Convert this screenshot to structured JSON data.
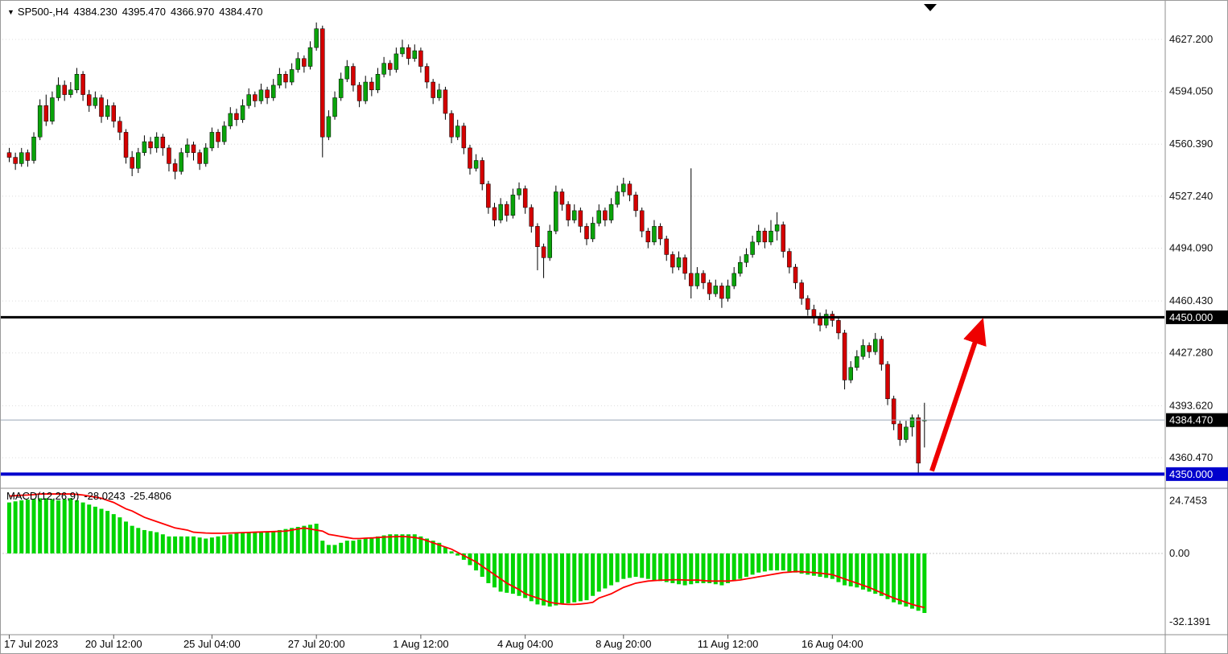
{
  "header": {
    "marker_icon": "▼",
    "symbol_timeframe": "SP500-,H4",
    "open": "4384.230",
    "high": "4395.470",
    "low": "4366.970",
    "close": "4384.470"
  },
  "macd_label": {
    "name": "MACD(12,26,9)",
    "macd_value": "-28.0243",
    "signal_value": "-25.4806"
  },
  "chart_data": {
    "type": "candlestick",
    "symbol": "SP500-",
    "timeframe": "H4",
    "colors": {
      "bull": "#0aa30a",
      "bear": "#d40000",
      "wick": "#000000",
      "hist": "#00d500",
      "signal": "#ff0000",
      "grid": "#dcdcdc",
      "axis_text": "#111111",
      "support": "#0000cd",
      "resistance": "#000000",
      "arrow": "#ee0000"
    },
    "x_labels": [
      {
        "text": "17 Jul 2023",
        "bar": 0
      },
      {
        "text": "20 Jul 12:00",
        "bar": 17
      },
      {
        "text": "25 Jul 04:00",
        "bar": 33
      },
      {
        "text": "27 Jul 20:00",
        "bar": 50
      },
      {
        "text": "1 Aug 12:00",
        "bar": 67
      },
      {
        "text": "4 Aug 04:00",
        "bar": 84
      },
      {
        "text": "8 Aug 20:00",
        "bar": 100
      },
      {
        "text": "11 Aug 12:00",
        "bar": 117
      },
      {
        "text": "16 Aug 04:00",
        "bar": 134
      }
    ],
    "main": {
      "ylim": [
        4343,
        4639
      ],
      "ticks": [
        [
          4627.2,
          "4627.200"
        ],
        [
          4594.05,
          "4594.050"
        ],
        [
          4560.39,
          "4560.390"
        ],
        [
          4527.24,
          "4527.240"
        ],
        [
          4494.09,
          "4494.090"
        ],
        [
          4460.43,
          "4460.430"
        ],
        [
          4427.28,
          "4427.280"
        ],
        [
          4393.62,
          "4393.620"
        ],
        [
          4360.47,
          "4360.470"
        ]
      ],
      "hlines": [
        {
          "name": "resistance-line",
          "price": 4450.0,
          "label": "4450.000",
          "color": "#000000",
          "badge": "#000000",
          "width": 3
        },
        {
          "name": "support-line",
          "price": 4350.0,
          "label": "4350.000",
          "color": "#0000cd",
          "badge": "#0000cd",
          "width": 4
        }
      ],
      "current_price": {
        "value": 4384.47,
        "label": "4384.470",
        "line_color": "#9aa7b8",
        "badge": "#000000"
      },
      "arrow": {
        "from_bar": 150.2,
        "from_price": 4352,
        "to_bar": 158,
        "to_price": 4443,
        "color": "#ee0000"
      },
      "ohlc": [
        [
          4555,
          4558,
          4549,
          4552
        ],
        [
          4552,
          4555,
          4544,
          4548
        ],
        [
          4548,
          4558,
          4546,
          4555
        ],
        [
          4555,
          4557,
          4546,
          4550
        ],
        [
          4550,
          4568,
          4548,
          4565
        ],
        [
          4565,
          4589,
          4563,
          4585
        ],
        [
          4585,
          4592,
          4572,
          4575
        ],
        [
          4575,
          4594,
          4573,
          4590
        ],
        [
          4590,
          4603,
          4588,
          4598
        ],
        [
          4598,
          4601,
          4588,
          4592
        ],
        [
          4592,
          4600,
          4590,
          4595
        ],
        [
          4595,
          4609,
          4593,
          4605
        ],
        [
          4605,
          4607,
          4588,
          4592
        ],
        [
          4592,
          4595,
          4581,
          4585
        ],
        [
          4585,
          4594,
          4583,
          4590
        ],
        [
          4590,
          4592,
          4574,
          4578
        ],
        [
          4578,
          4589,
          4576,
          4585
        ],
        [
          4585,
          4587,
          4571,
          4575
        ],
        [
          4575,
          4578,
          4563,
          4568
        ],
        [
          4568,
          4570,
          4548,
          4552
        ],
        [
          4552,
          4556,
          4540,
          4545
        ],
        [
          4545,
          4558,
          4542,
          4555
        ],
        [
          4555,
          4566,
          4553,
          4562
        ],
        [
          4562,
          4565,
          4554,
          4558
        ],
        [
          4558,
          4568,
          4555,
          4565
        ],
        [
          4565,
          4567,
          4553,
          4558
        ],
        [
          4558,
          4560,
          4543,
          4548
        ],
        [
          4548,
          4551,
          4538,
          4543
        ],
        [
          4543,
          4558,
          4541,
          4555
        ],
        [
          4555,
          4564,
          4552,
          4560
        ],
        [
          4560,
          4562,
          4550,
          4555
        ],
        [
          4555,
          4557,
          4544,
          4548
        ],
        [
          4548,
          4561,
          4546,
          4558
        ],
        [
          4558,
          4571,
          4556,
          4568
        ],
        [
          4568,
          4570,
          4558,
          4562
        ],
        [
          4562,
          4575,
          4560,
          4572
        ],
        [
          4572,
          4584,
          4570,
          4580
        ],
        [
          4580,
          4583,
          4572,
          4576
        ],
        [
          4576,
          4589,
          4574,
          4585
        ],
        [
          4585,
          4596,
          4583,
          4592
        ],
        [
          4592,
          4594,
          4584,
          4588
        ],
        [
          4588,
          4599,
          4586,
          4595
        ],
        [
          4595,
          4597,
          4586,
          4590
        ],
        [
          4590,
          4602,
          4588,
          4598
        ],
        [
          4598,
          4609,
          4596,
          4605
        ],
        [
          4605,
          4607,
          4596,
          4600
        ],
        [
          4600,
          4612,
          4598,
          4608
        ],
        [
          4608,
          4619,
          4606,
          4615
        ],
        [
          4615,
          4617,
          4606,
          4610
        ],
        [
          4610,
          4626,
          4608,
          4622
        ],
        [
          4622,
          4638,
          4620,
          4634
        ],
        [
          4634,
          4636,
          4552,
          4565
        ],
        [
          4565,
          4582,
          4563,
          4578
        ],
        [
          4578,
          4594,
          4576,
          4590
        ],
        [
          4590,
          4606,
          4588,
          4602
        ],
        [
          4602,
          4614,
          4600,
          4610
        ],
        [
          4610,
          4612,
          4594,
          4598
        ],
        [
          4598,
          4600,
          4584,
          4588
        ],
        [
          4588,
          4604,
          4586,
          4600
        ],
        [
          4600,
          4603,
          4591,
          4595
        ],
        [
          4595,
          4609,
          4593,
          4605
        ],
        [
          4605,
          4616,
          4603,
          4612
        ],
        [
          4612,
          4614,
          4604,
          4608
        ],
        [
          4608,
          4622,
          4606,
          4618
        ],
        [
          4618,
          4627,
          4616,
          4622
        ],
        [
          4622,
          4624,
          4611,
          4615
        ],
        [
          4615,
          4624,
          4613,
          4620
        ],
        [
          4620,
          4622,
          4606,
          4610
        ],
        [
          4610,
          4612,
          4596,
          4600
        ],
        [
          4600,
          4602,
          4586,
          4590
        ],
        [
          4590,
          4599,
          4588,
          4595
        ],
        [
          4595,
          4597,
          4576,
          4580
        ],
        [
          4580,
          4582,
          4561,
          4565
        ],
        [
          4565,
          4576,
          4563,
          4572
        ],
        [
          4572,
          4574,
          4554,
          4558
        ],
        [
          4558,
          4560,
          4541,
          4545
        ],
        [
          4545,
          4554,
          4543,
          4550
        ],
        [
          4550,
          4552,
          4531,
          4535
        ],
        [
          4535,
          4537,
          4516,
          4520
        ],
        [
          4520,
          4523,
          4508,
          4512
        ],
        [
          4512,
          4526,
          4510,
          4522
        ],
        [
          4522,
          4524,
          4511,
          4515
        ],
        [
          4515,
          4532,
          4513,
          4528
        ],
        [
          4528,
          4536,
          4525,
          4532
        ],
        [
          4532,
          4534,
          4516,
          4520
        ],
        [
          4520,
          4522,
          4504,
          4508
        ],
        [
          4508,
          4510,
          4480,
          4495
        ],
        [
          4495,
          4497,
          4475,
          4488
        ],
        [
          4488,
          4509,
          4486,
          4505
        ],
        [
          4505,
          4534,
          4503,
          4530
        ],
        [
          4530,
          4532,
          4518,
          4522
        ],
        [
          4522,
          4524,
          4508,
          4512
        ],
        [
          4512,
          4522,
          4510,
          4518
        ],
        [
          4518,
          4520,
          4504,
          4508
        ],
        [
          4508,
          4510,
          4496,
          4500
        ],
        [
          4500,
          4514,
          4498,
          4510
        ],
        [
          4510,
          4522,
          4508,
          4518
        ],
        [
          4518,
          4520,
          4508,
          4512
        ],
        [
          4512,
          4526,
          4510,
          4522
        ],
        [
          4522,
          4534,
          4520,
          4530
        ],
        [
          4530,
          4539,
          4527,
          4535
        ],
        [
          4535,
          4537,
          4524,
          4528
        ],
        [
          4528,
          4530,
          4514,
          4518
        ],
        [
          4518,
          4520,
          4501,
          4505
        ],
        [
          4505,
          4507,
          4494,
          4498
        ],
        [
          4498,
          4512,
          4496,
          4508
        ],
        [
          4508,
          4510,
          4496,
          4500
        ],
        [
          4500,
          4502,
          4486,
          4490
        ],
        [
          4490,
          4492,
          4478,
          4482
        ],
        [
          4482,
          4492,
          4480,
          4488
        ],
        [
          4488,
          4490,
          4474,
          4478
        ],
        [
          4478,
          4545,
          4462,
          4470
        ],
        [
          4470,
          4482,
          4468,
          4478
        ],
        [
          4478,
          4480,
          4468,
          4472
        ],
        [
          4472,
          4474,
          4461,
          4465
        ],
        [
          4465,
          4474,
          4463,
          4470
        ],
        [
          4470,
          4472,
          4456,
          4462
        ],
        [
          4462,
          4474,
          4460,
          4470
        ],
        [
          4470,
          4482,
          4468,
          4478
        ],
        [
          4478,
          4489,
          4476,
          4485
        ],
        [
          4485,
          4494,
          4482,
          4490
        ],
        [
          4490,
          4502,
          4488,
          4498
        ],
        [
          4498,
          4509,
          4496,
          4505
        ],
        [
          4505,
          4507,
          4494,
          4498
        ],
        [
          4498,
          4512,
          4496,
          4505
        ],
        [
          4505,
          4517,
          4499,
          4509
        ],
        [
          4509,
          4511,
          4488,
          4492
        ],
        [
          4492,
          4494,
          4478,
          4482
        ],
        [
          4482,
          4484,
          4468,
          4472
        ],
        [
          4472,
          4474,
          4458,
          4462
        ],
        [
          4462,
          4464,
          4451,
          4455
        ],
        [
          4455,
          4458,
          4446,
          4450
        ],
        [
          4450,
          4453,
          4441,
          4445
        ],
        [
          4445,
          4455,
          4443,
          4452
        ],
        [
          4452,
          4454,
          4444,
          4448
        ],
        [
          4448,
          4450,
          4436,
          4440
        ],
        [
          4440,
          4442,
          4404,
          4410
        ],
        [
          4410,
          4422,
          4408,
          4418
        ],
        [
          4418,
          4429,
          4416,
          4425
        ],
        [
          4425,
          4436,
          4423,
          4432
        ],
        [
          4432,
          4434,
          4424,
          4428
        ],
        [
          4428,
          4440,
          4426,
          4436
        ],
        [
          4436,
          4438,
          4416,
          4420
        ],
        [
          4420,
          4422,
          4394,
          4398
        ],
        [
          4398,
          4400,
          4378,
          4382
        ],
        [
          4382,
          4384,
          4368,
          4372
        ],
        [
          4372,
          4384,
          4370,
          4380
        ],
        [
          4380,
          4388,
          4374,
          4386
        ],
        [
          4386,
          4388,
          4350,
          4357
        ],
        [
          4384.23,
          4395.47,
          4366.97,
          4384.47
        ]
      ]
    },
    "macd": {
      "ylim": [
        -37.5,
        28.4
      ],
      "ticks": [
        [
          24.7453,
          "24.7453"
        ],
        [
          0,
          "0.00"
        ],
        [
          -32.1391,
          "-32.1391"
        ]
      ],
      "histogram": [
        24,
        24.5,
        25,
        25.3,
        25.6,
        26,
        26,
        25.5,
        25,
        25.5,
        26,
        25,
        24,
        23,
        22,
        21,
        20,
        18.5,
        17,
        15,
        13,
        12,
        11,
        10.5,
        10,
        9,
        8,
        8,
        8,
        8,
        8,
        7.5,
        7,
        7.5,
        8,
        8.5,
        9,
        9.5,
        10,
        10,
        10,
        10,
        10,
        10.5,
        11,
        11.5,
        12,
        12.5,
        13,
        13.5,
        14,
        6,
        4,
        4,
        5,
        6,
        6,
        6.5,
        7,
        7.5,
        8,
        8.5,
        9,
        9,
        9,
        9,
        9,
        8,
        7,
        6,
        5,
        3,
        1,
        -1,
        -3,
        -5.5,
        -8,
        -11,
        -14,
        -16,
        -18,
        -18.5,
        -19,
        -20,
        -21,
        -22.5,
        -24,
        -24.5,
        -25,
        -24.5,
        -24,
        -23.5,
        -23,
        -22.5,
        -22,
        -20,
        -18,
        -16.5,
        -15,
        -13.5,
        -12,
        -11.5,
        -11,
        -11.5,
        -12,
        -12.5,
        -13,
        -13.5,
        -14,
        -14.5,
        -15,
        -14.5,
        -14,
        -14,
        -14,
        -14.5,
        -15,
        -14,
        -13,
        -12,
        -11,
        -10,
        -9,
        -8.5,
        -8,
        -8,
        -8,
        -8.5,
        -9,
        -9.5,
        -10,
        -10.5,
        -11,
        -11.5,
        -12,
        -13.5,
        -15,
        -15.5,
        -16,
        -17,
        -18,
        -19,
        -20,
        -21.5,
        -23,
        -24,
        -25,
        -26,
        -27,
        -28.02
      ],
      "signal": [
        27,
        27.2,
        27.4,
        27.5,
        27.7,
        28,
        28,
        28,
        28,
        28,
        28,
        27.8,
        27.5,
        27,
        26.5,
        26,
        25,
        24,
        22.5,
        21,
        20,
        18.5,
        17,
        16,
        15,
        14,
        13,
        12,
        11.5,
        11,
        10,
        9.8,
        9.6,
        9.5,
        9.5,
        9.5,
        9.6,
        9.7,
        9.8,
        9.9,
        10,
        10.1,
        10.2,
        10.3,
        10.4,
        10.5,
        11,
        11.5,
        12,
        11.5,
        11,
        10.5,
        9,
        8.5,
        8,
        7.5,
        7,
        7,
        7.2,
        7.3,
        7.5,
        7.7,
        7.8,
        7.9,
        8,
        7.8,
        7.5,
        7,
        6,
        5,
        4,
        3,
        2,
        0.5,
        -1,
        -2.5,
        -4,
        -6,
        -8,
        -10,
        -12,
        -14,
        -15.5,
        -17,
        -19,
        -20,
        -21,
        -22,
        -23,
        -23.5,
        -23.8,
        -24,
        -24,
        -23.8,
        -23.5,
        -23,
        -21,
        -20,
        -19,
        -17.5,
        -16,
        -15,
        -14,
        -13.5,
        -13,
        -12.8,
        -12.6,
        -12.5,
        -12.4,
        -12.4,
        -12.5,
        -12.6,
        -12.5,
        -12.8,
        -13,
        -13,
        -13,
        -13,
        -12.8,
        -12.5,
        -12,
        -11.5,
        -11,
        -10.5,
        -10,
        -9.5,
        -9,
        -8.8,
        -8.5,
        -8.6,
        -8.8,
        -9,
        -9.3,
        -9.6,
        -10,
        -11,
        -12,
        -13,
        -14,
        -15,
        -16,
        -17.3,
        -18.5,
        -19.8,
        -21,
        -22,
        -23,
        -24,
        -24.8,
        -25.48
      ]
    }
  }
}
